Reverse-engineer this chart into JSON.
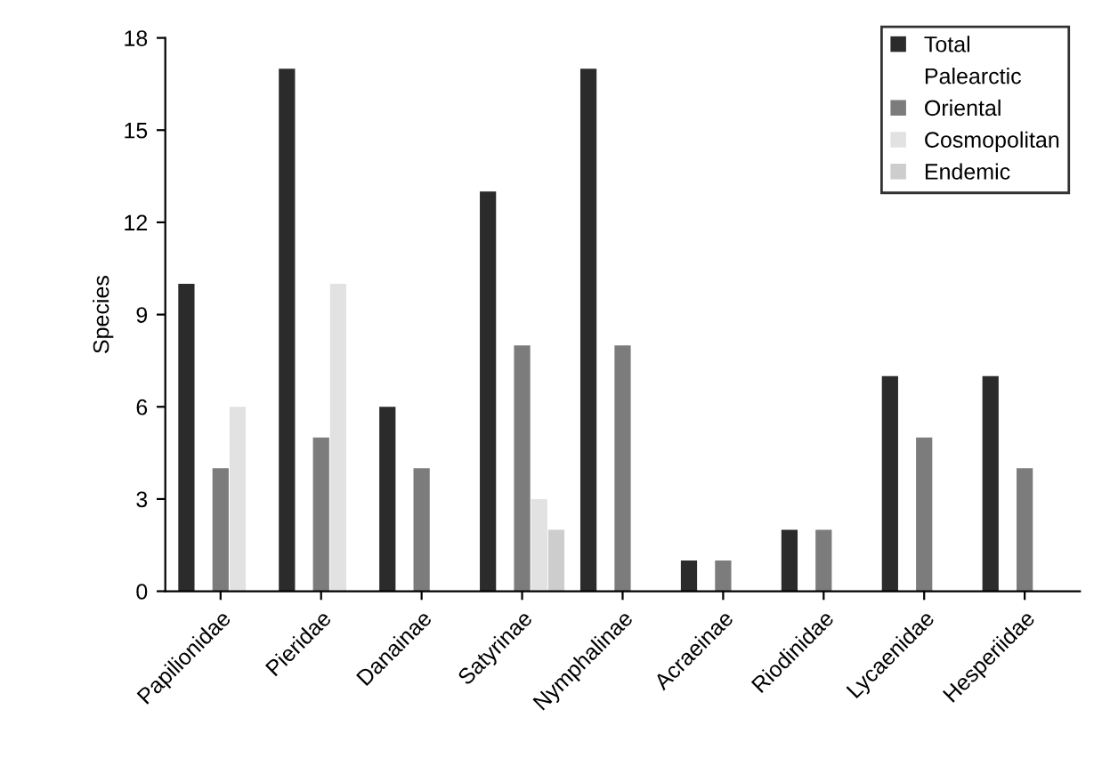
{
  "chart_data": {
    "type": "bar",
    "ylabel": "Species",
    "categories": [
      "Papilionidae",
      "Pieridae",
      "Danainae",
      "Satyrinae",
      "Nymphalinae",
      "Acraeinae",
      "Riodinidae",
      "Lycaenidae",
      "Hesperiidae"
    ],
    "series": [
      {
        "name": "Total",
        "color": "#2b2b2b",
        "values": [
          10,
          17,
          6,
          13,
          17,
          1,
          2,
          7,
          7
        ]
      },
      {
        "name": "Palearctic",
        "values": [
          null,
          null,
          null,
          null,
          null,
          null,
          null,
          null,
          null
        ]
      },
      {
        "name": "Oriental",
        "color": "#7c7c7c",
        "values": [
          4,
          5,
          4,
          8,
          8,
          1,
          2,
          5,
          4
        ]
      },
      {
        "name": "Cosmopolitan",
        "color": "#e2e2e2",
        "values": [
          6,
          10,
          0,
          3,
          0,
          0,
          0,
          0,
          0
        ]
      },
      {
        "name": "Endemic",
        "color": "#cdcdcd",
        "values": [
          0,
          0,
          0,
          2,
          0,
          0,
          0,
          0,
          0
        ]
      }
    ],
    "ylim": [
      0,
      18
    ],
    "yticks": [
      0,
      3,
      6,
      9,
      12,
      15,
      18
    ],
    "grid": false,
    "legend": "top right"
  }
}
